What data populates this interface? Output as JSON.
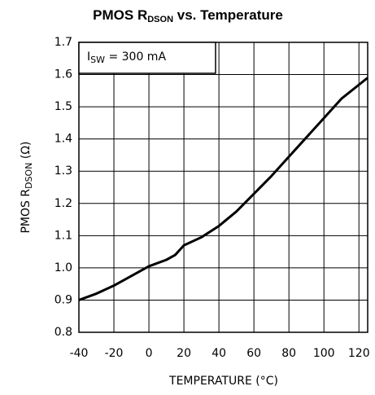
{
  "chart_data": {
    "type": "line",
    "title": [
      "PMOS R",
      "DSON",
      " vs. Temperature"
    ],
    "xlabel": "TEMPERATURE (°C)",
    "ylabel": [
      "PMOS R",
      "DSON",
      " (Ω)"
    ],
    "annotation": [
      "I",
      "SW",
      " = 300 mA"
    ],
    "x": [
      -40,
      -30,
      -20,
      -10,
      0,
      10,
      15,
      20,
      30,
      40,
      50,
      60,
      70,
      80,
      90,
      100,
      110,
      125
    ],
    "series": [
      {
        "name": "RDSON",
        "color": "#000000",
        "values": [
          0.9,
          0.92,
          0.945,
          0.975,
          1.005,
          1.025,
          1.04,
          1.07,
          1.095,
          1.13,
          1.175,
          1.23,
          1.285,
          1.345,
          1.405,
          1.465,
          1.525,
          1.59
        ]
      }
    ],
    "xlim": [
      -40,
      125
    ],
    "xticks": [
      -40,
      -20,
      0,
      20,
      40,
      60,
      80,
      100,
      120
    ],
    "ylim": [
      0.8,
      1.7
    ],
    "yticks": [
      0.8,
      0.9,
      {
        "value": 1,
        "label": "1.0"
      },
      1.1,
      1.2,
      1.3,
      1.4,
      1.5,
      1.6,
      1.7
    ],
    "grid": true
  }
}
